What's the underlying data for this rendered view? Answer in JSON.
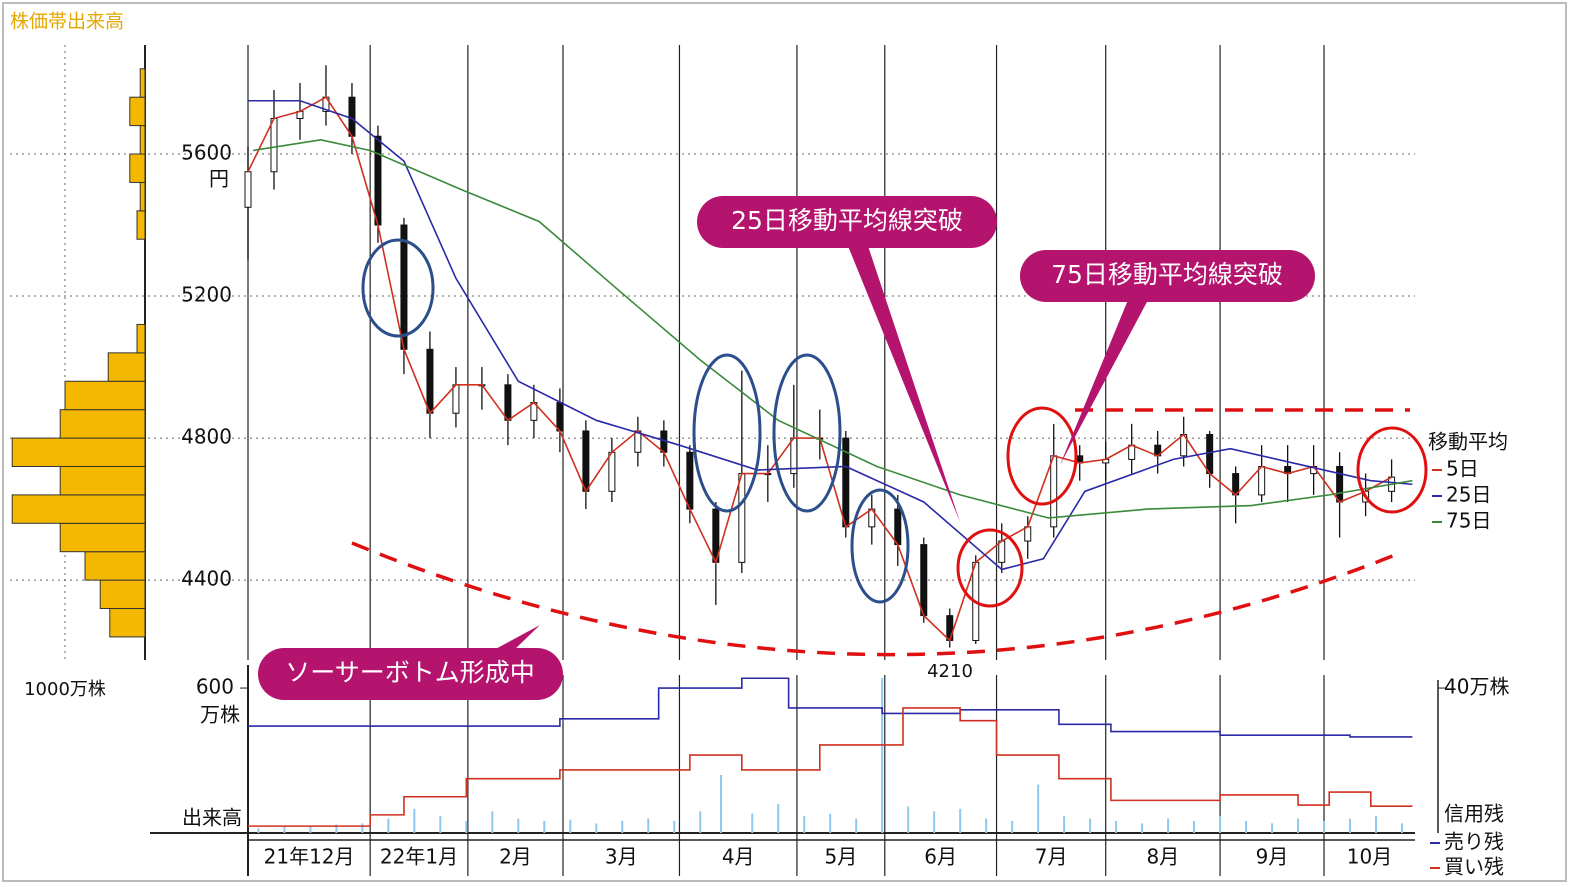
{
  "chart_data": [
    {
      "type": "candlestick",
      "x": [
        0,
        5,
        10,
        15,
        20,
        25,
        30,
        35,
        40,
        45,
        50,
        55,
        60,
        65,
        70,
        75,
        80,
        85,
        90,
        95,
        100,
        105,
        110,
        115,
        120,
        125,
        130,
        135,
        140,
        145,
        150,
        155,
        160,
        165,
        170,
        175,
        180,
        185,
        190,
        195,
        200,
        205,
        210,
        215,
        220
      ],
      "open": [
        5450,
        5550,
        5700,
        5720,
        5760,
        5650,
        5400,
        5050,
        4870,
        4950,
        4950,
        4850,
        4900,
        4820,
        4650,
        4760,
        4820,
        4760,
        4600,
        4450,
        4700,
        4700,
        4800,
        4800,
        4550,
        4600,
        4500,
        4300,
        4230,
        4450,
        4510,
        4550,
        4750,
        4730,
        4740,
        4780,
        4750,
        4810,
        4700,
        4640,
        4720,
        4700,
        4720,
        4620,
        4650
      ],
      "high": [
        5620,
        5780,
        5800,
        5850,
        5800,
        5680,
        5420,
        5100,
        5000,
        5000,
        4980,
        4950,
        4940,
        4850,
        4800,
        4860,
        4850,
        4780,
        4620,
        4990,
        4780,
        4950,
        4880,
        4820,
        4640,
        4640,
        4520,
        4320,
        4470,
        4560,
        4580,
        4840,
        4780,
        4790,
        4840,
        4820,
        4860,
        4820,
        4720,
        4780,
        4780,
        4780,
        4760,
        4700,
        4740
      ],
      "low": [
        5300,
        5500,
        5640,
        5680,
        5600,
        5350,
        4980,
        4800,
        4830,
        4880,
        4780,
        4800,
        4760,
        4600,
        4620,
        4720,
        4720,
        4560,
        4330,
        4420,
        4620,
        4660,
        4740,
        4520,
        4500,
        4440,
        4280,
        4210,
        4220,
        4420,
        4460,
        4520,
        4680,
        4680,
        4700,
        4700,
        4720,
        4660,
        4560,
        4620,
        4620,
        4640,
        4520,
        4580,
        4620
      ],
      "close": [
        5550,
        5700,
        5720,
        5760,
        5650,
        5400,
        5050,
        4870,
        4950,
        4950,
        4850,
        4900,
        4820,
        4650,
        4760,
        4820,
        4760,
        4600,
        4450,
        4700,
        4700,
        4800,
        4800,
        4550,
        4600,
        4500,
        4300,
        4230,
        4450,
        4510,
        4550,
        4750,
        4730,
        4740,
        4780,
        4750,
        4810,
        4700,
        4640,
        4720,
        4700,
        4720,
        4620,
        4650,
        4690
      ],
      "xlim": [
        0,
        224.5
      ],
      "xticks": [
        {
          "value": 0,
          "label": "21年12月"
        },
        {
          "value": 23.5,
          "label": "22年1月"
        },
        {
          "value": 42.3,
          "label": "2月"
        },
        {
          "value": 60.6,
          "label": "3月"
        },
        {
          "value": 83,
          "label": "4月"
        },
        {
          "value": 105.6,
          "label": "5月"
        },
        {
          "value": 122.5,
          "label": "6月"
        },
        {
          "value": 144,
          "label": "7月"
        },
        {
          "value": 165,
          "label": "8月"
        },
        {
          "value": 187,
          "label": "9月"
        },
        {
          "value": 207,
          "label": "10月"
        }
      ],
      "ylim": [
        4175,
        5907
      ],
      "yticks": [
        4400,
        4800,
        5200,
        5600
      ],
      "y_unit": "円",
      "grid": true,
      "legend_title": "移動平均",
      "series": [
        {
          "name": "5日",
          "color": "#d03020",
          "x": [
            0,
            5,
            10,
            15,
            20,
            25,
            30,
            35,
            40,
            45,
            50,
            55,
            60,
            65,
            70,
            75,
            80,
            85,
            90,
            95,
            100,
            105,
            110,
            115,
            120,
            125,
            130,
            135,
            140,
            145,
            150,
            155,
            160,
            165,
            170,
            175,
            180,
            185,
            190,
            195,
            200,
            205,
            210,
            215,
            220
          ],
          "values": [
            5550,
            5700,
            5720,
            5760,
            5650,
            5400,
            5050,
            4870,
            4950,
            4950,
            4850,
            4900,
            4820,
            4650,
            4760,
            4820,
            4760,
            4600,
            4450,
            4700,
            4700,
            4800,
            4800,
            4550,
            4600,
            4500,
            4300,
            4230,
            4450,
            4510,
            4550,
            4750,
            4730,
            4740,
            4780,
            4750,
            4810,
            4700,
            4640,
            4720,
            4700,
            4720,
            4620,
            4650,
            4690
          ]
        },
        {
          "name": "25日",
          "color": "#2a2aa8",
          "x": [
            0,
            10,
            20,
            30,
            40,
            52,
            67,
            83,
            98,
            115,
            130,
            145,
            153,
            161,
            178,
            189,
            201,
            216,
            224
          ],
          "values": [
            5750,
            5750,
            5700,
            5580,
            5250,
            4960,
            4850,
            4780,
            4710,
            4720,
            4620,
            4430,
            4460,
            4650,
            4740,
            4770,
            4730,
            4680,
            4670
          ]
        },
        {
          "name": "75日",
          "color": "#3a8a3a",
          "x": [
            1,
            14,
            23.5,
            41,
            56,
            71,
            87,
            102,
            121,
            137,
            154,
            173,
            193,
            208,
            224
          ],
          "values": [
            5610,
            5640,
            5610,
            5500,
            5410,
            5220,
            5020,
            4850,
            4720,
            4640,
            4575,
            4600,
            4610,
            4640,
            4680
          ]
        }
      ],
      "min_label": 4210,
      "callouts": [
        "25日移動平均線突破",
        "75日移動平均線突破",
        "ソーサーボトム形成中"
      ]
    },
    {
      "type": "histogram",
      "title": "株価帯出来高",
      "bins": [
        4240,
        4320,
        4400,
        4480,
        4560,
        4640,
        4720,
        4800,
        4880,
        4960,
        5040,
        5120,
        5200,
        5280,
        5360,
        5440,
        5520,
        5600,
        5680,
        5760,
        5840
      ],
      "values": [
        440,
        560,
        750,
        1060,
        1660,
        1060,
        1660,
        1060,
        1000,
        460,
        100,
        0,
        0,
        0,
        100,
        60,
        190,
        60,
        190,
        60
      ],
      "color": "#f5b800",
      "xlim": [
        0,
        1800
      ],
      "xticks": [
        {
          "value": 1000,
          "label": "1000万株"
        }
      ]
    },
    {
      "type": "bar",
      "x": [
        2,
        7,
        12,
        17,
        22,
        27,
        32,
        37,
        42,
        47,
        52,
        57,
        62,
        67,
        72,
        77,
        82,
        87,
        91,
        97,
        102,
        107,
        112,
        117,
        122,
        127,
        132,
        137,
        142,
        147,
        152,
        157,
        162,
        167,
        172,
        177,
        182,
        187,
        192,
        197,
        202,
        207,
        212,
        217,
        222
      ],
      "values": [
        20,
        25,
        30,
        35,
        40,
        60,
        100,
        70,
        50,
        90,
        60,
        50,
        55,
        40,
        50,
        60,
        50,
        90,
        240,
        80,
        120,
        70,
        80,
        60,
        641,
        110,
        90,
        100,
        60,
        50,
        200,
        70,
        60,
        50,
        40,
        60,
        50,
        70,
        50,
        40,
        60,
        50,
        60,
        70,
        40
      ],
      "color": "#8ec8ee",
      "ylim": [
        0,
        654
      ],
      "yticks": [
        600
      ],
      "y_unit": "万株",
      "y_label": "出来高",
      "y2lim": [
        0,
        43.6
      ],
      "y2ticks": [
        {
          "value": 40,
          "label": "40万株"
        }
      ],
      "y2_label": "信用残",
      "series": [
        {
          "name": "売り残",
          "color": "#2a2aa8",
          "axis": "y2",
          "x": [
            0,
            55,
            60,
            75,
            79,
            95,
            104,
            122,
            137,
            156,
            166,
            187,
            212,
            224
          ],
          "values": [
            29.5,
            29.5,
            31.5,
            31.5,
            40,
            42.7,
            34.5,
            33,
            34,
            30,
            28,
            27,
            26.5,
            26.5
          ]
        },
        {
          "name": "買い残",
          "color": "#d03020",
          "axis": "y2",
          "x": [
            0,
            23.5,
            30,
            42,
            60,
            73,
            85,
            95,
            110,
            126,
            137,
            144,
            156,
            166,
            187,
            202,
            208,
            216,
            224
          ],
          "values": [
            1.9,
            5,
            10,
            15,
            17.4,
            17.4,
            21.5,
            17.4,
            24.3,
            34.5,
            31,
            21.5,
            15,
            9,
            10.5,
            7.7,
            11.3,
            7.4,
            7.4
          ]
        }
      ]
    }
  ]
}
